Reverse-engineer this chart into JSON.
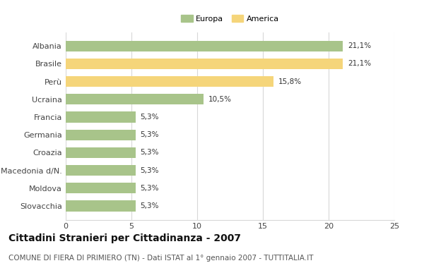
{
  "categories": [
    "Albania",
    "Brasile",
    "Perù",
    "Ucraina",
    "Francia",
    "Germania",
    "Croazia",
    "Macedonia d/N.",
    "Moldova",
    "Slovacchia"
  ],
  "values": [
    21.1,
    21.1,
    15.8,
    10.5,
    5.3,
    5.3,
    5.3,
    5.3,
    5.3,
    5.3
  ],
  "labels": [
    "21,1%",
    "21,1%",
    "15,8%",
    "10,5%",
    "5,3%",
    "5,3%",
    "5,3%",
    "5,3%",
    "5,3%",
    "5,3%"
  ],
  "continent": [
    "Europa",
    "America",
    "America",
    "Europa",
    "Europa",
    "Europa",
    "Europa",
    "Europa",
    "Europa",
    "Europa"
  ],
  "color_europa": "#a8c48a",
  "color_america": "#f5d57a",
  "bg_color": "#ffffff",
  "grid_color": "#d8d8d8",
  "xlim": [
    0,
    25
  ],
  "xticks": [
    0,
    5,
    10,
    15,
    20,
    25
  ],
  "title": "Cittadini Stranieri per Cittadinanza - 2007",
  "subtitle": "COMUNE DI FIERA DI PRIMIERO (TN) - Dati ISTAT al 1° gennaio 2007 - TUTTITALIA.IT",
  "legend_europa": "Europa",
  "legend_america": "America",
  "title_fontsize": 10,
  "subtitle_fontsize": 7.5,
  "label_fontsize": 7.5,
  "tick_fontsize": 8
}
